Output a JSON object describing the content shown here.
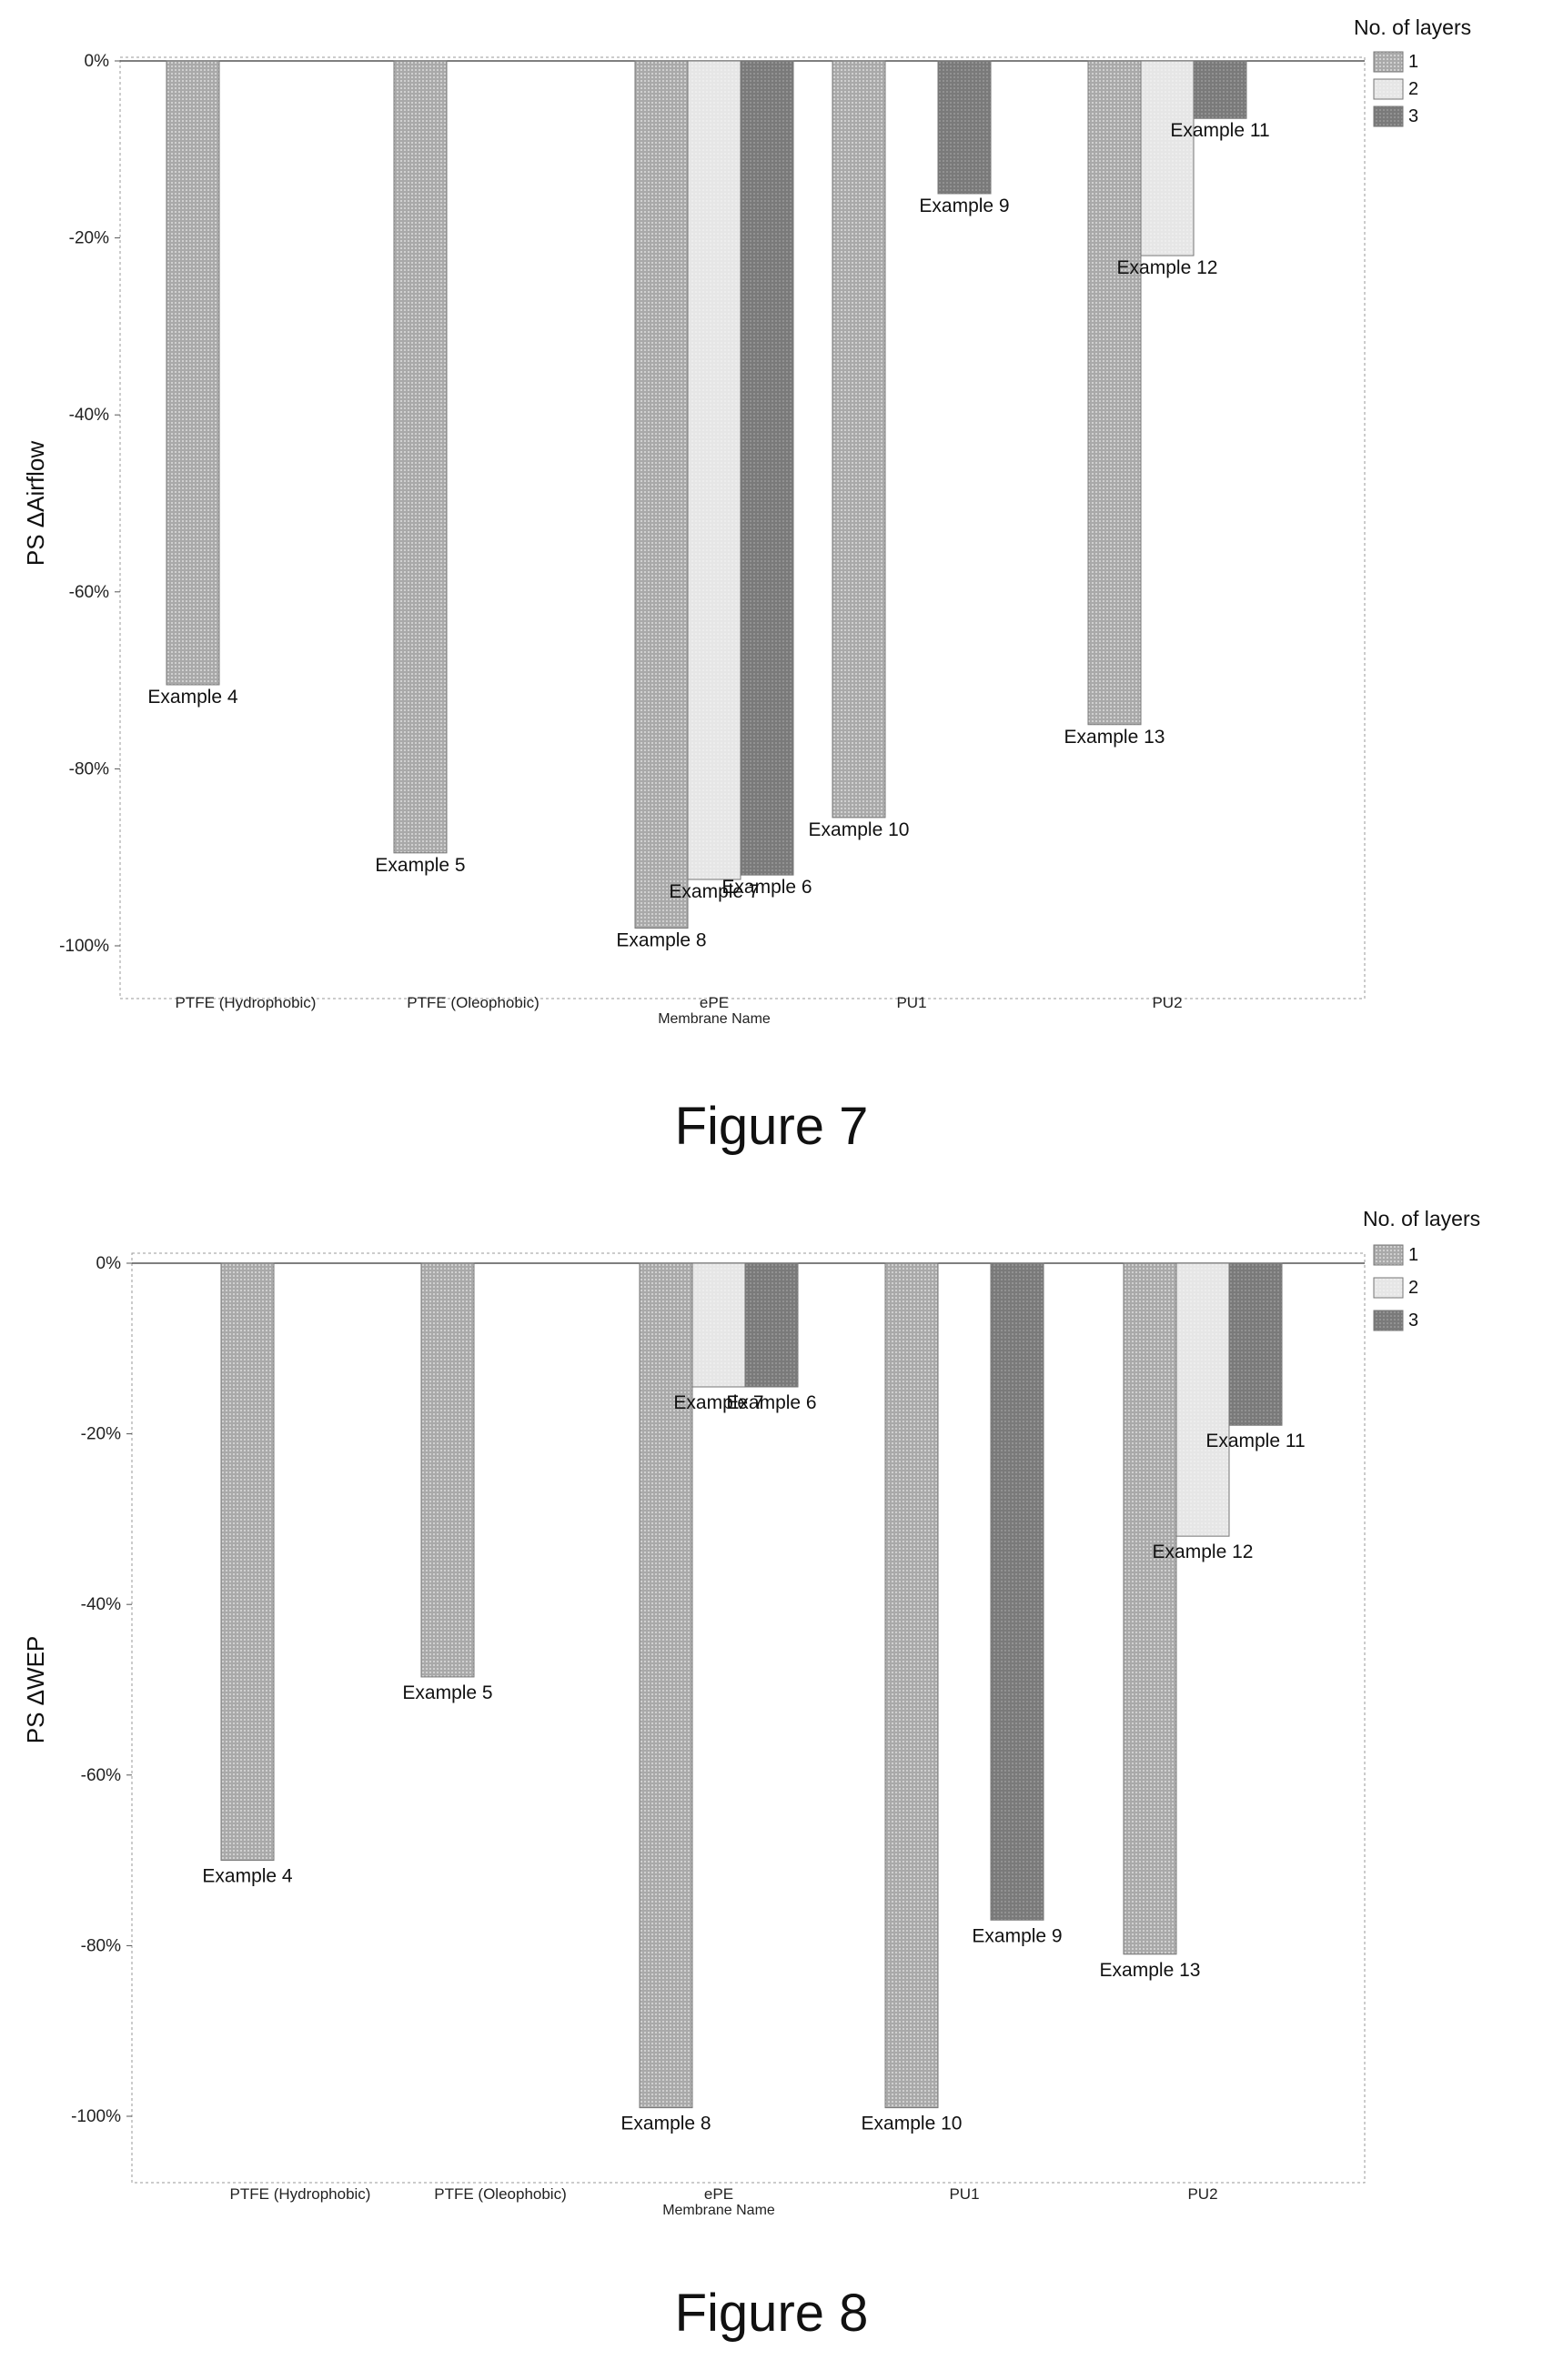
{
  "figures": [
    {
      "caption": "Figure 7"
    },
    {
      "caption": "Figure 8"
    }
  ],
  "colors": {
    "layer_1": "#a9a9a9",
    "layer_2": "#e6e6e6",
    "layer_3": "#7a7a7a"
  },
  "chart_data": [
    {
      "type": "bar",
      "title": "",
      "xlabel": "Membrane Name",
      "ylabel": "PS ΔAirflow",
      "categories": [
        "PTFE (Hydrophobic)",
        "PTFE (Oleophobic)",
        "ePE",
        "PU1",
        "PU2"
      ],
      "yticks": [
        "0%",
        "-20%",
        "-40%",
        "-60%",
        "-80%",
        "-100%"
      ],
      "ylim": [
        -105,
        0
      ],
      "legend": {
        "title": "No. of layers",
        "position": "right",
        "items": [
          "1",
          "2",
          "3"
        ]
      },
      "bars": [
        {
          "category": "PTFE (Hydrophobic)",
          "layers": "1",
          "value": -70.5,
          "label": "Example 4"
        },
        {
          "category": "PTFE (Oleophobic)",
          "layers": "1",
          "value": -89.5,
          "label": "Example 5"
        },
        {
          "category": "ePE",
          "layers": "1",
          "value": -98,
          "label": "Example 8"
        },
        {
          "category": "ePE",
          "layers": "2",
          "value": -92.5,
          "label": "Example 7"
        },
        {
          "category": "ePE",
          "layers": "3",
          "value": -92,
          "label": "Example 6"
        },
        {
          "category": "PU1",
          "layers": "1",
          "value": -85.5,
          "label": "Example 10"
        },
        {
          "category": "PU1",
          "layers": "3",
          "value": -15,
          "label": "Example 9"
        },
        {
          "category": "PU2",
          "layers": "1",
          "value": -75,
          "label": "Example 13"
        },
        {
          "category": "PU2",
          "layers": "2",
          "value": -22,
          "label": "Example 12"
        },
        {
          "category": "PU2",
          "layers": "3",
          "value": -6.5,
          "label": "Example 11"
        }
      ]
    },
    {
      "type": "bar",
      "title": "",
      "xlabel": "Membrane Name",
      "ylabel": "PS ΔWEP",
      "categories": [
        "PTFE (Hydrophobic)",
        "PTFE (Oleophobic)",
        "ePE",
        "PU1",
        "PU2"
      ],
      "yticks": [
        "0%",
        "-20%",
        "-40%",
        "-60%",
        "-80%",
        "-100%"
      ],
      "ylim": [
        -107,
        0
      ],
      "legend": {
        "title": "No. of layers",
        "position": "right",
        "items": [
          "1",
          "2",
          "3"
        ]
      },
      "bars": [
        {
          "category": "PTFE (Hydrophobic)",
          "layers": "1",
          "value": -70,
          "label": "Example 4"
        },
        {
          "category": "PTFE (Oleophobic)",
          "layers": "1",
          "value": -48.5,
          "label": "Example 5"
        },
        {
          "category": "ePE",
          "layers": "1",
          "value": -99,
          "label": "Example 8"
        },
        {
          "category": "ePE",
          "layers": "2",
          "value": -14.5,
          "label": "Example 7"
        },
        {
          "category": "ePE",
          "layers": "3",
          "value": -14.5,
          "label": "Example 6"
        },
        {
          "category": "PU1",
          "layers": "1",
          "value": -99,
          "label": "Example 10"
        },
        {
          "category": "PU1",
          "layers": "3",
          "value": -77,
          "label": "Example 9"
        },
        {
          "category": "PU2",
          "layers": "1",
          "value": -81,
          "label": "Example 13"
        },
        {
          "category": "PU2",
          "layers": "2",
          "value": -32,
          "label": "Example 12"
        },
        {
          "category": "PU2",
          "layers": "3",
          "value": -19,
          "label": "Example 11"
        }
      ]
    }
  ]
}
